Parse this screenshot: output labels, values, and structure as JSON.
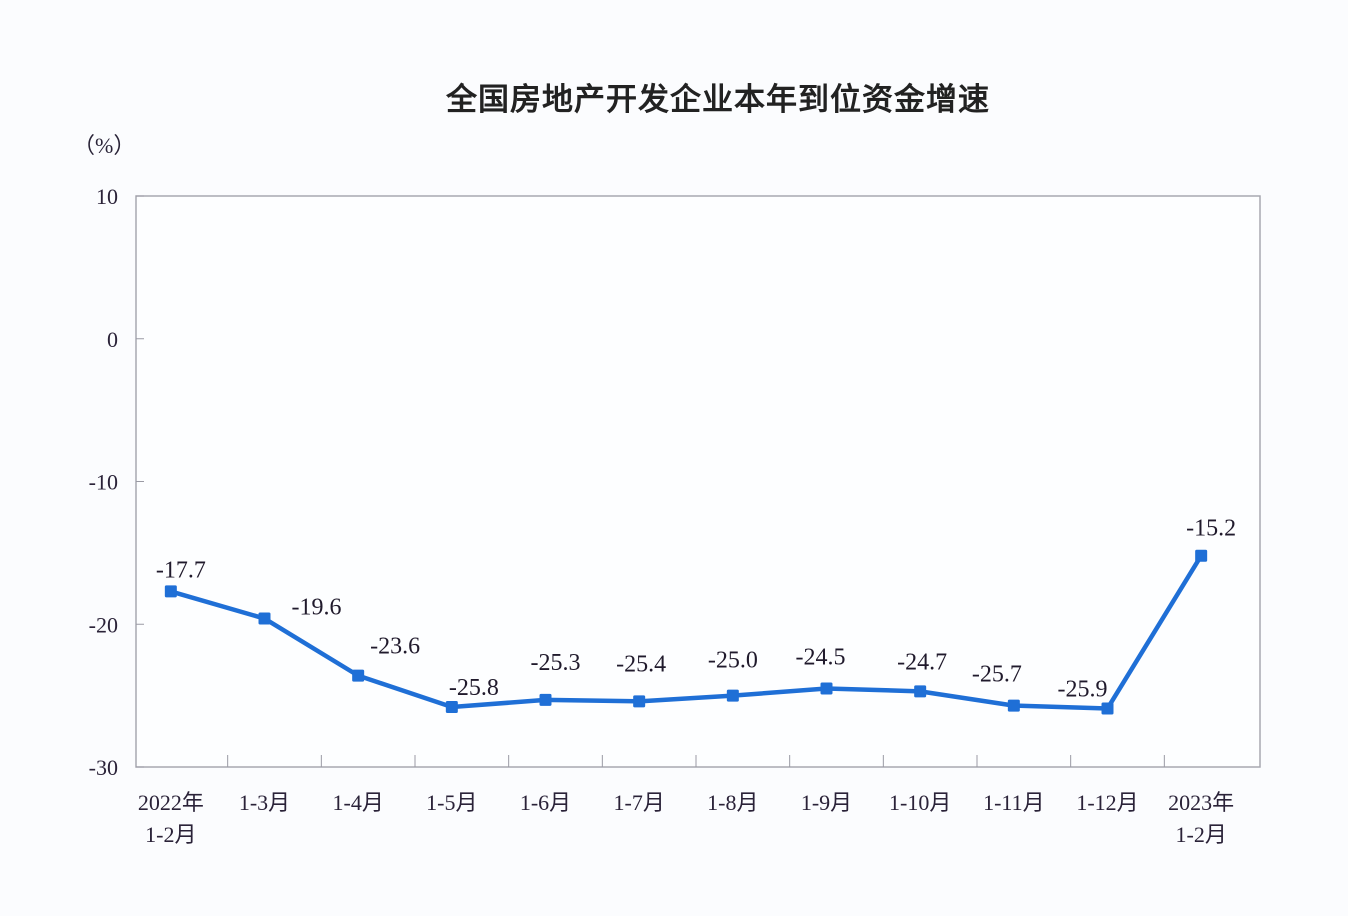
{
  "chart_data": {
    "type": "line",
    "title": "全国房地产开发企业本年到位资金增速",
    "ylabel": "（%）",
    "xlabel": "",
    "ylim": [
      -30,
      10
    ],
    "yticks": [
      10,
      0,
      -10,
      -20,
      -30
    ],
    "grid": false,
    "legend": null,
    "categories": [
      "2022年\n1-2月",
      "1-3月",
      "1-4月",
      "1-5月",
      "1-6月",
      "1-7月",
      "1-8月",
      "1-9月",
      "1-10月",
      "1-11月",
      "1-12月",
      "2023年\n1-2月"
    ],
    "series": [
      {
        "name": "本年到位资金增速",
        "color": "#1f6fd6",
        "values": [
          -17.7,
          -19.6,
          -23.6,
          -25.8,
          -25.3,
          -25.4,
          -25.0,
          -24.5,
          -24.7,
          -25.7,
          -25.9,
          -15.2
        ],
        "labels": [
          "-17.7",
          "-19.6",
          "-23.6",
          "-25.8",
          "-25.3",
          "-25.4",
          "-25.0",
          "-24.5",
          "-24.7",
          "-25.7",
          "-25.9",
          "-15.2"
        ]
      }
    ]
  },
  "header": {
    "title": "全国房地产开发企业本年到位资金增速",
    "unit": "（%）"
  }
}
